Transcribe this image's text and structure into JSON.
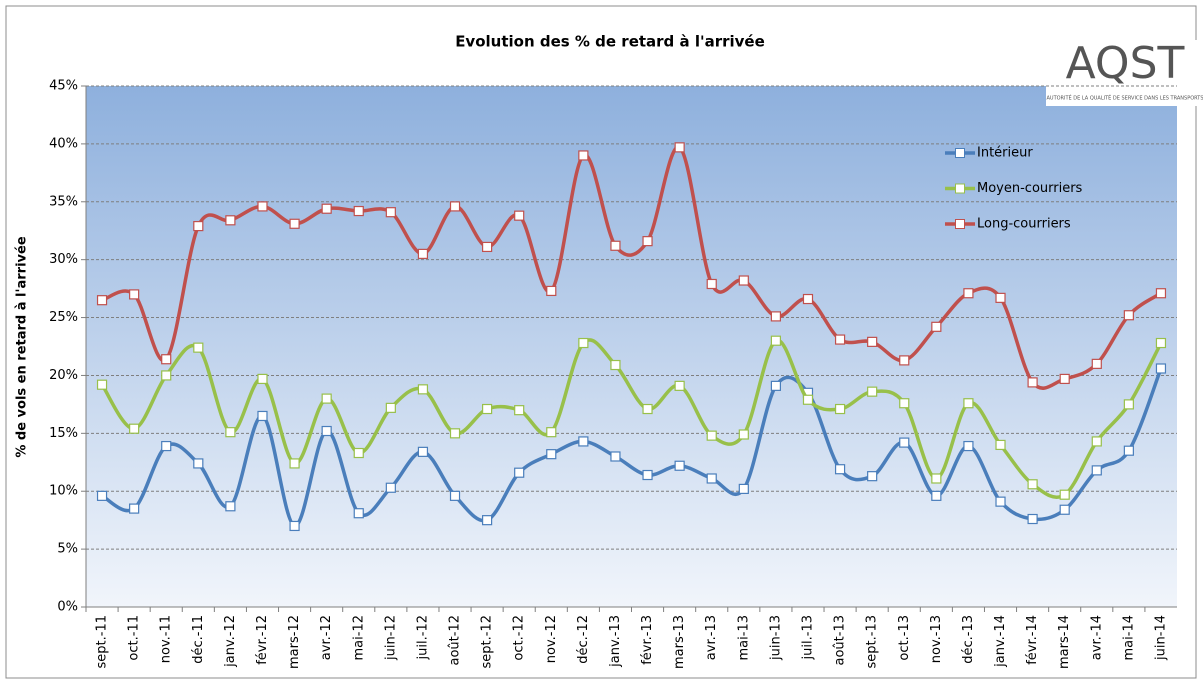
{
  "chart_data": {
    "type": "line",
    "title": "Evolution des % de retard à l'arrivée",
    "y_label": "% de vols en retard à l'arrivée",
    "categories": [
      "sept.-11",
      "oct.-11",
      "nov.-11",
      "déc.-11",
      "janv.-12",
      "févr.-12",
      "mars-12",
      "avr.-12",
      "mai-12",
      "juin-12",
      "juil.-12",
      "août-12",
      "sept.-12",
      "oct.-12",
      "nov.-12",
      "déc.-12",
      "janv.-13",
      "févr.-13",
      "mars-13",
      "avr.-13",
      "mai-13",
      "juin-13",
      "juil.-13",
      "août-13",
      "sept.-13",
      "oct.-13",
      "nov.-13",
      "déc.-13",
      "janv.-14",
      "févr.-14",
      "mars-14",
      "avr.-14",
      "mai-14",
      "juin-14"
    ],
    "series": [
      {
        "name": "Intérieur",
        "color": "#4a7ebb",
        "values": [
          9.6,
          8.5,
          13.9,
          12.4,
          8.7,
          16.5,
          7.0,
          15.2,
          8.1,
          10.3,
          13.4,
          9.6,
          7.5,
          11.6,
          13.2,
          14.3,
          13.0,
          11.4,
          12.2,
          11.1,
          10.2,
          19.1,
          18.5,
          11.9,
          11.3,
          14.2,
          9.6,
          13.9,
          9.1,
          7.6,
          8.4,
          11.8,
          13.5,
          20.6
        ]
      },
      {
        "name": "Moyen-courriers",
        "color": "#98c04a",
        "values": [
          19.2,
          15.4,
          20.0,
          22.4,
          15.1,
          19.7,
          12.4,
          18.0,
          13.3,
          17.2,
          18.8,
          15.0,
          17.1,
          17.0,
          15.1,
          22.8,
          20.9,
          17.1,
          19.1,
          14.8,
          14.9,
          23.0,
          17.9,
          17.1,
          18.6,
          17.6,
          11.1,
          17.6,
          14.0,
          10.6,
          9.7,
          14.3,
          17.5,
          22.8
        ]
      },
      {
        "name": "Long-courriers",
        "color": "#c0504d",
        "values": [
          26.5,
          27.0,
          21.4,
          32.9,
          33.4,
          34.6,
          33.1,
          34.4,
          34.2,
          34.1,
          30.5,
          34.6,
          31.1,
          33.8,
          27.3,
          39.0,
          31.2,
          31.6,
          39.7,
          27.9,
          28.2,
          25.1,
          26.6,
          23.1,
          22.9,
          21.3,
          24.2,
          27.1,
          26.7,
          19.4,
          19.7,
          21.0,
          25.2,
          27.1
        ]
      }
    ],
    "ylim": [
      0,
      45
    ],
    "yticks": [
      {
        "value": 0,
        "label": "0%"
      },
      {
        "value": 5,
        "label": "5%"
      },
      {
        "value": 10,
        "label": "10%"
      },
      {
        "value": 15,
        "label": "15%"
      },
      {
        "value": 20,
        "label": "20%"
      },
      {
        "value": 25,
        "label": "25%"
      },
      {
        "value": 30,
        "label": "30%"
      },
      {
        "value": 35,
        "label": "35%"
      },
      {
        "value": 40,
        "label": "40%"
      },
      {
        "value": 45,
        "label": "45%"
      }
    ],
    "grid": true,
    "smooth": true,
    "legend": "upper right"
  },
  "logo": {
    "name": "AQST",
    "subtitle": "AUTORITÉ DE LA QUALITÉ DE SERVICE DANS LES TRANSPORTS"
  }
}
